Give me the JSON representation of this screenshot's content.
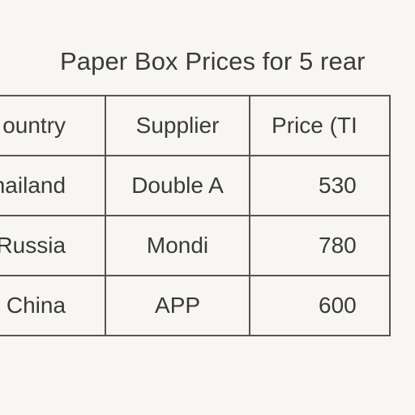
{
  "title": "Paper Box Prices for 5 rear",
  "table": {
    "headers": [
      "ountry",
      "Supplier",
      "Price (TI"
    ],
    "rows": [
      [
        "hailand",
        "Double A",
        "530"
      ],
      [
        "Russia",
        "Mondi",
        "780"
      ],
      [
        "China",
        "APP",
        "600"
      ]
    ]
  }
}
